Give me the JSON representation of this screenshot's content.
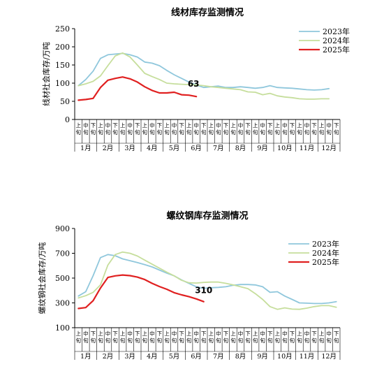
{
  "chart_data": [
    {
      "type": "line",
      "title": "线材库存监测情况",
      "ylabel": "线材社会库存/万吨",
      "ylim": [
        0,
        250
      ],
      "yticks": [
        0,
        50,
        100,
        150,
        200,
        250
      ],
      "months": [
        "1月",
        "2月",
        "3月",
        "4月",
        "5月",
        "6月",
        "7月",
        "8月",
        "9月",
        "10月",
        "11月",
        "12月"
      ],
      "periods": [
        "上旬",
        "中旬",
        "下旬"
      ],
      "legend_position": "top-right",
      "annotation": "63",
      "series": [
        {
          "name": "2023年",
          "color": "#8fc7dc",
          "values": [
            93,
            110,
            133,
            168,
            178,
            180,
            182,
            178,
            172,
            158,
            155,
            148,
            135,
            123,
            113,
            103,
            95,
            88,
            90,
            92,
            88,
            88,
            90,
            88,
            86,
            88,
            93,
            88,
            87,
            86,
            84,
            82,
            81,
            82,
            85,
            null
          ]
        },
        {
          "name": "2024年",
          "color": "#c6de9c",
          "values": [
            93,
            98,
            105,
            120,
            148,
            175,
            183,
            172,
            150,
            127,
            118,
            110,
            100,
            98,
            97,
            96,
            95,
            93,
            90,
            88,
            86,
            84,
            82,
            76,
            75,
            68,
            72,
            65,
            62,
            60,
            57,
            56,
            56,
            57,
            57,
            null
          ]
        },
        {
          "name": "2025年",
          "color": "#e02020",
          "values": [
            53,
            55,
            58,
            88,
            108,
            113,
            117,
            112,
            103,
            90,
            80,
            73,
            73,
            75,
            68,
            67,
            63,
            null,
            null,
            null,
            null,
            null,
            null,
            null,
            null,
            null,
            null,
            null,
            null,
            null,
            null,
            null,
            null,
            null,
            null,
            null
          ]
        }
      ]
    },
    {
      "type": "line",
      "title": "螺纹钢库存监测情况",
      "ylabel": "螺纹钢社会库存/万吨",
      "ylim": [
        100,
        900
      ],
      "yticks": [
        100,
        300,
        500,
        700,
        900
      ],
      "months": [
        "1月",
        "2月",
        "3月",
        "4月",
        "5月",
        "6月",
        "7月",
        "8月",
        "9月",
        "10月",
        "11月",
        "12月"
      ],
      "periods": [
        "上旬",
        "中旬",
        "下旬"
      ],
      "legend_position": "top-right",
      "annotation": "310",
      "series": [
        {
          "name": "2023年",
          "color": "#8fc7dc",
          "values": [
            355,
            390,
            520,
            665,
            690,
            680,
            655,
            640,
            625,
            608,
            590,
            565,
            540,
            518,
            485,
            458,
            430,
            418,
            422,
            425,
            430,
            442,
            448,
            448,
            445,
            430,
            385,
            390,
            355,
            328,
            300,
            298,
            295,
            295,
            300,
            310
          ]
        },
        {
          "name": "2024年",
          "color": "#c6de9c",
          "values": [
            340,
            358,
            385,
            445,
            605,
            690,
            710,
            700,
            678,
            645,
            612,
            580,
            548,
            518,
            482,
            462,
            460,
            465,
            468,
            468,
            458,
            445,
            430,
            415,
            375,
            328,
            270,
            248,
            260,
            250,
            248,
            258,
            270,
            278,
            278,
            265
          ]
        },
        {
          "name": "2025年",
          "color": "#e02020",
          "values": [
            255,
            262,
            318,
            420,
            505,
            518,
            525,
            520,
            508,
            488,
            458,
            432,
            410,
            382,
            365,
            350,
            332,
            310,
            null,
            null,
            null,
            null,
            null,
            null,
            null,
            null,
            null,
            null,
            null,
            null,
            null,
            null,
            null,
            null,
            null,
            null
          ]
        }
      ]
    }
  ]
}
